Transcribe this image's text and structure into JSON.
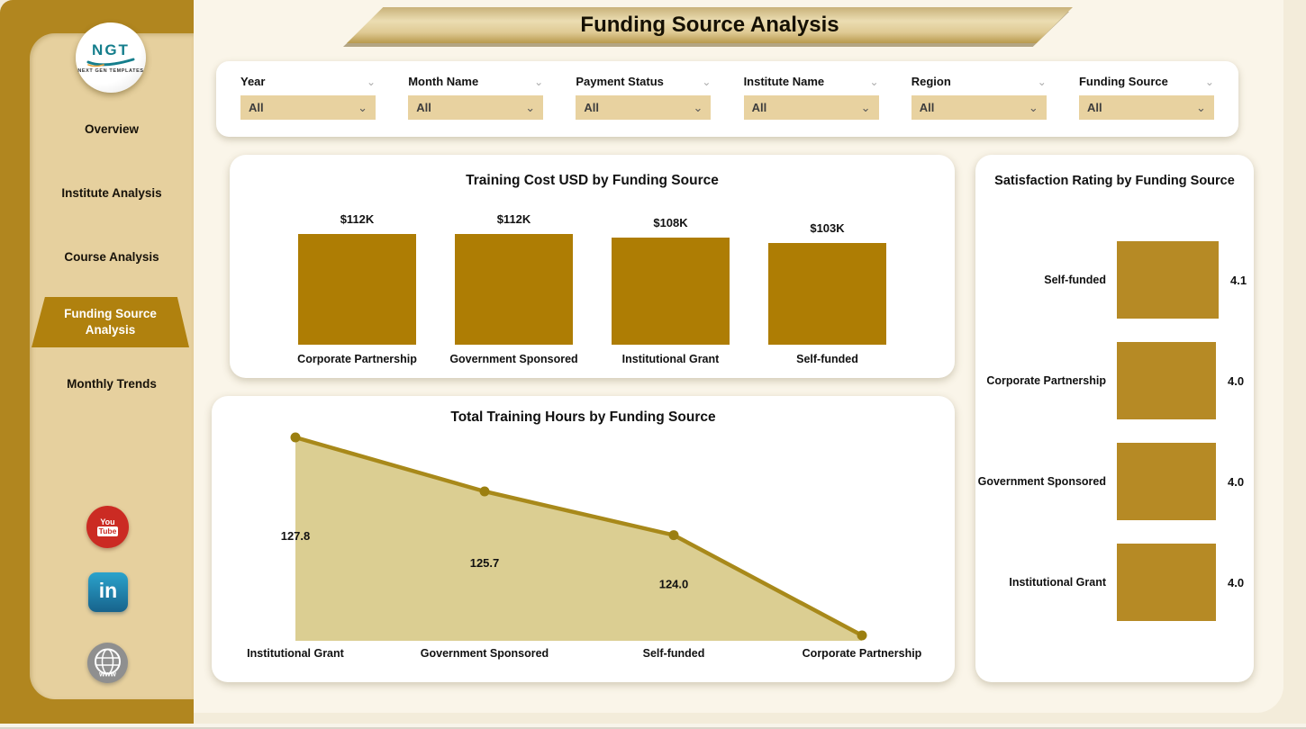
{
  "header": {
    "title": "Funding Source Analysis"
  },
  "sidebar": {
    "logo": {
      "text": "NGT",
      "subtext": "NEXT GEN TEMPLATES"
    },
    "items": [
      {
        "label": "Overview",
        "active": false
      },
      {
        "label": "Institute Analysis",
        "active": false
      },
      {
        "label": "Course Analysis",
        "active": false
      },
      {
        "label": "Funding Source Analysis",
        "active": true
      },
      {
        "label": "Monthly Trends",
        "active": false
      }
    ],
    "social": {
      "youtube": {
        "line1": "You",
        "line2": "Tube"
      },
      "linkedin": {
        "text": "in"
      },
      "website": {
        "text": "www"
      }
    }
  },
  "filters": [
    {
      "label": "Year",
      "value": "All"
    },
    {
      "label": "Month Name",
      "value": "All"
    },
    {
      "label": "Payment Status",
      "value": "All"
    },
    {
      "label": "Institute Name",
      "value": "All"
    },
    {
      "label": "Region",
      "value": "All"
    },
    {
      "label": "Funding Source",
      "value": "All"
    }
  ],
  "colors": {
    "sidebar_outer": "#B1861F",
    "sidebar_inner": "#E6D09E",
    "active_nav": "#B0810E",
    "bar_vertical": "#AE7D04",
    "bar_horizontal": "#B68A25",
    "area_fill": "#DBCE92",
    "area_line": "#A8891A",
    "area_marker": "#9B7F10"
  },
  "chart_data": [
    {
      "id": "training_cost",
      "type": "bar",
      "title": "Training Cost USD by Funding Source",
      "categories": [
        "Corporate Partnership",
        "Government Sponsored",
        "Institutional Grant",
        "Self-funded"
      ],
      "values": [
        112,
        112,
        108,
        103
      ],
      "value_labels": [
        "$112K",
        "$112K",
        "$108K",
        "$103K"
      ],
      "unit": "USD thousands",
      "grid": false,
      "legend": "none"
    },
    {
      "id": "training_hours",
      "type": "area",
      "title": "Total Training Hours by Funding Source",
      "categories": [
        "Institutional Grant",
        "Government Sponsored",
        "Self-funded",
        "Corporate Partnership"
      ],
      "values": [
        127.8,
        125.7,
        124.0,
        120.1
      ],
      "value_labels": [
        "127.8",
        "125.7",
        "124.0",
        ""
      ],
      "grid": false,
      "legend": "none"
    },
    {
      "id": "satisfaction",
      "type": "bar-horizontal",
      "title": "Satisfaction Rating by Funding Source",
      "categories": [
        "Self-funded",
        "Corporate Partnership",
        "Government Sponsored",
        "Institutional Grant"
      ],
      "values": [
        4.1,
        4.0,
        4.0,
        4.0
      ],
      "value_labels": [
        "4.1",
        "4.0",
        "4.0",
        "4.0"
      ],
      "xlim": [
        0,
        4.1
      ],
      "grid": false,
      "legend": "none"
    }
  ]
}
